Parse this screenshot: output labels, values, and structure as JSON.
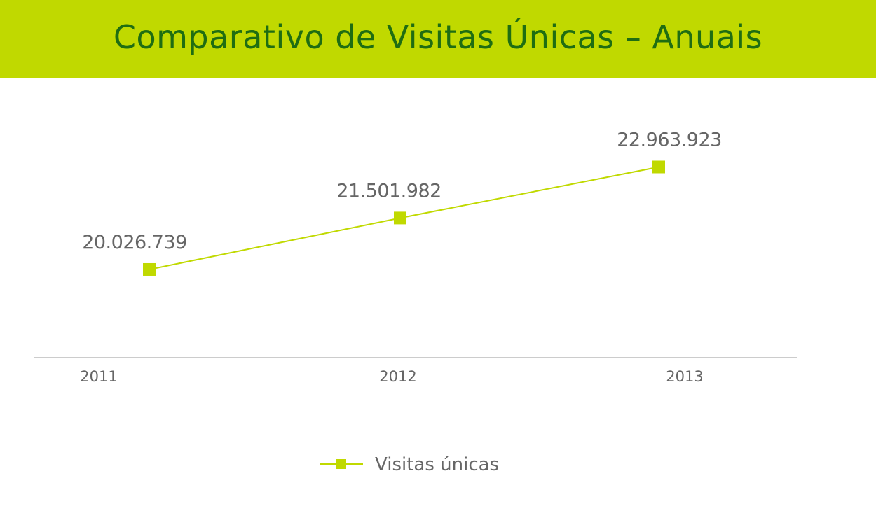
{
  "header": {
    "title": "Comparativo de Visitas Únicas – Anuais",
    "background_color": "#c0d900",
    "title_color": "#1f6d12"
  },
  "chart_data": {
    "type": "line",
    "title": "Comparativo de Visitas Únicas – Anuais",
    "categories": [
      "2011",
      "2012",
      "2013"
    ],
    "series": [
      {
        "name": "Visitas únicas",
        "values": [
          20026739,
          21501982,
          22963923
        ],
        "labels": [
          "20.026.739",
          "21.501.982",
          "22.963.923"
        ],
        "color": "#c0d900",
        "marker": "square"
      }
    ],
    "xlabel": "",
    "ylabel": "",
    "ylim": [
      17500000,
      25500000
    ],
    "grid": false,
    "legend_position": "bottom-center",
    "axis_color": "#cccccc",
    "text_color": "#666666"
  }
}
